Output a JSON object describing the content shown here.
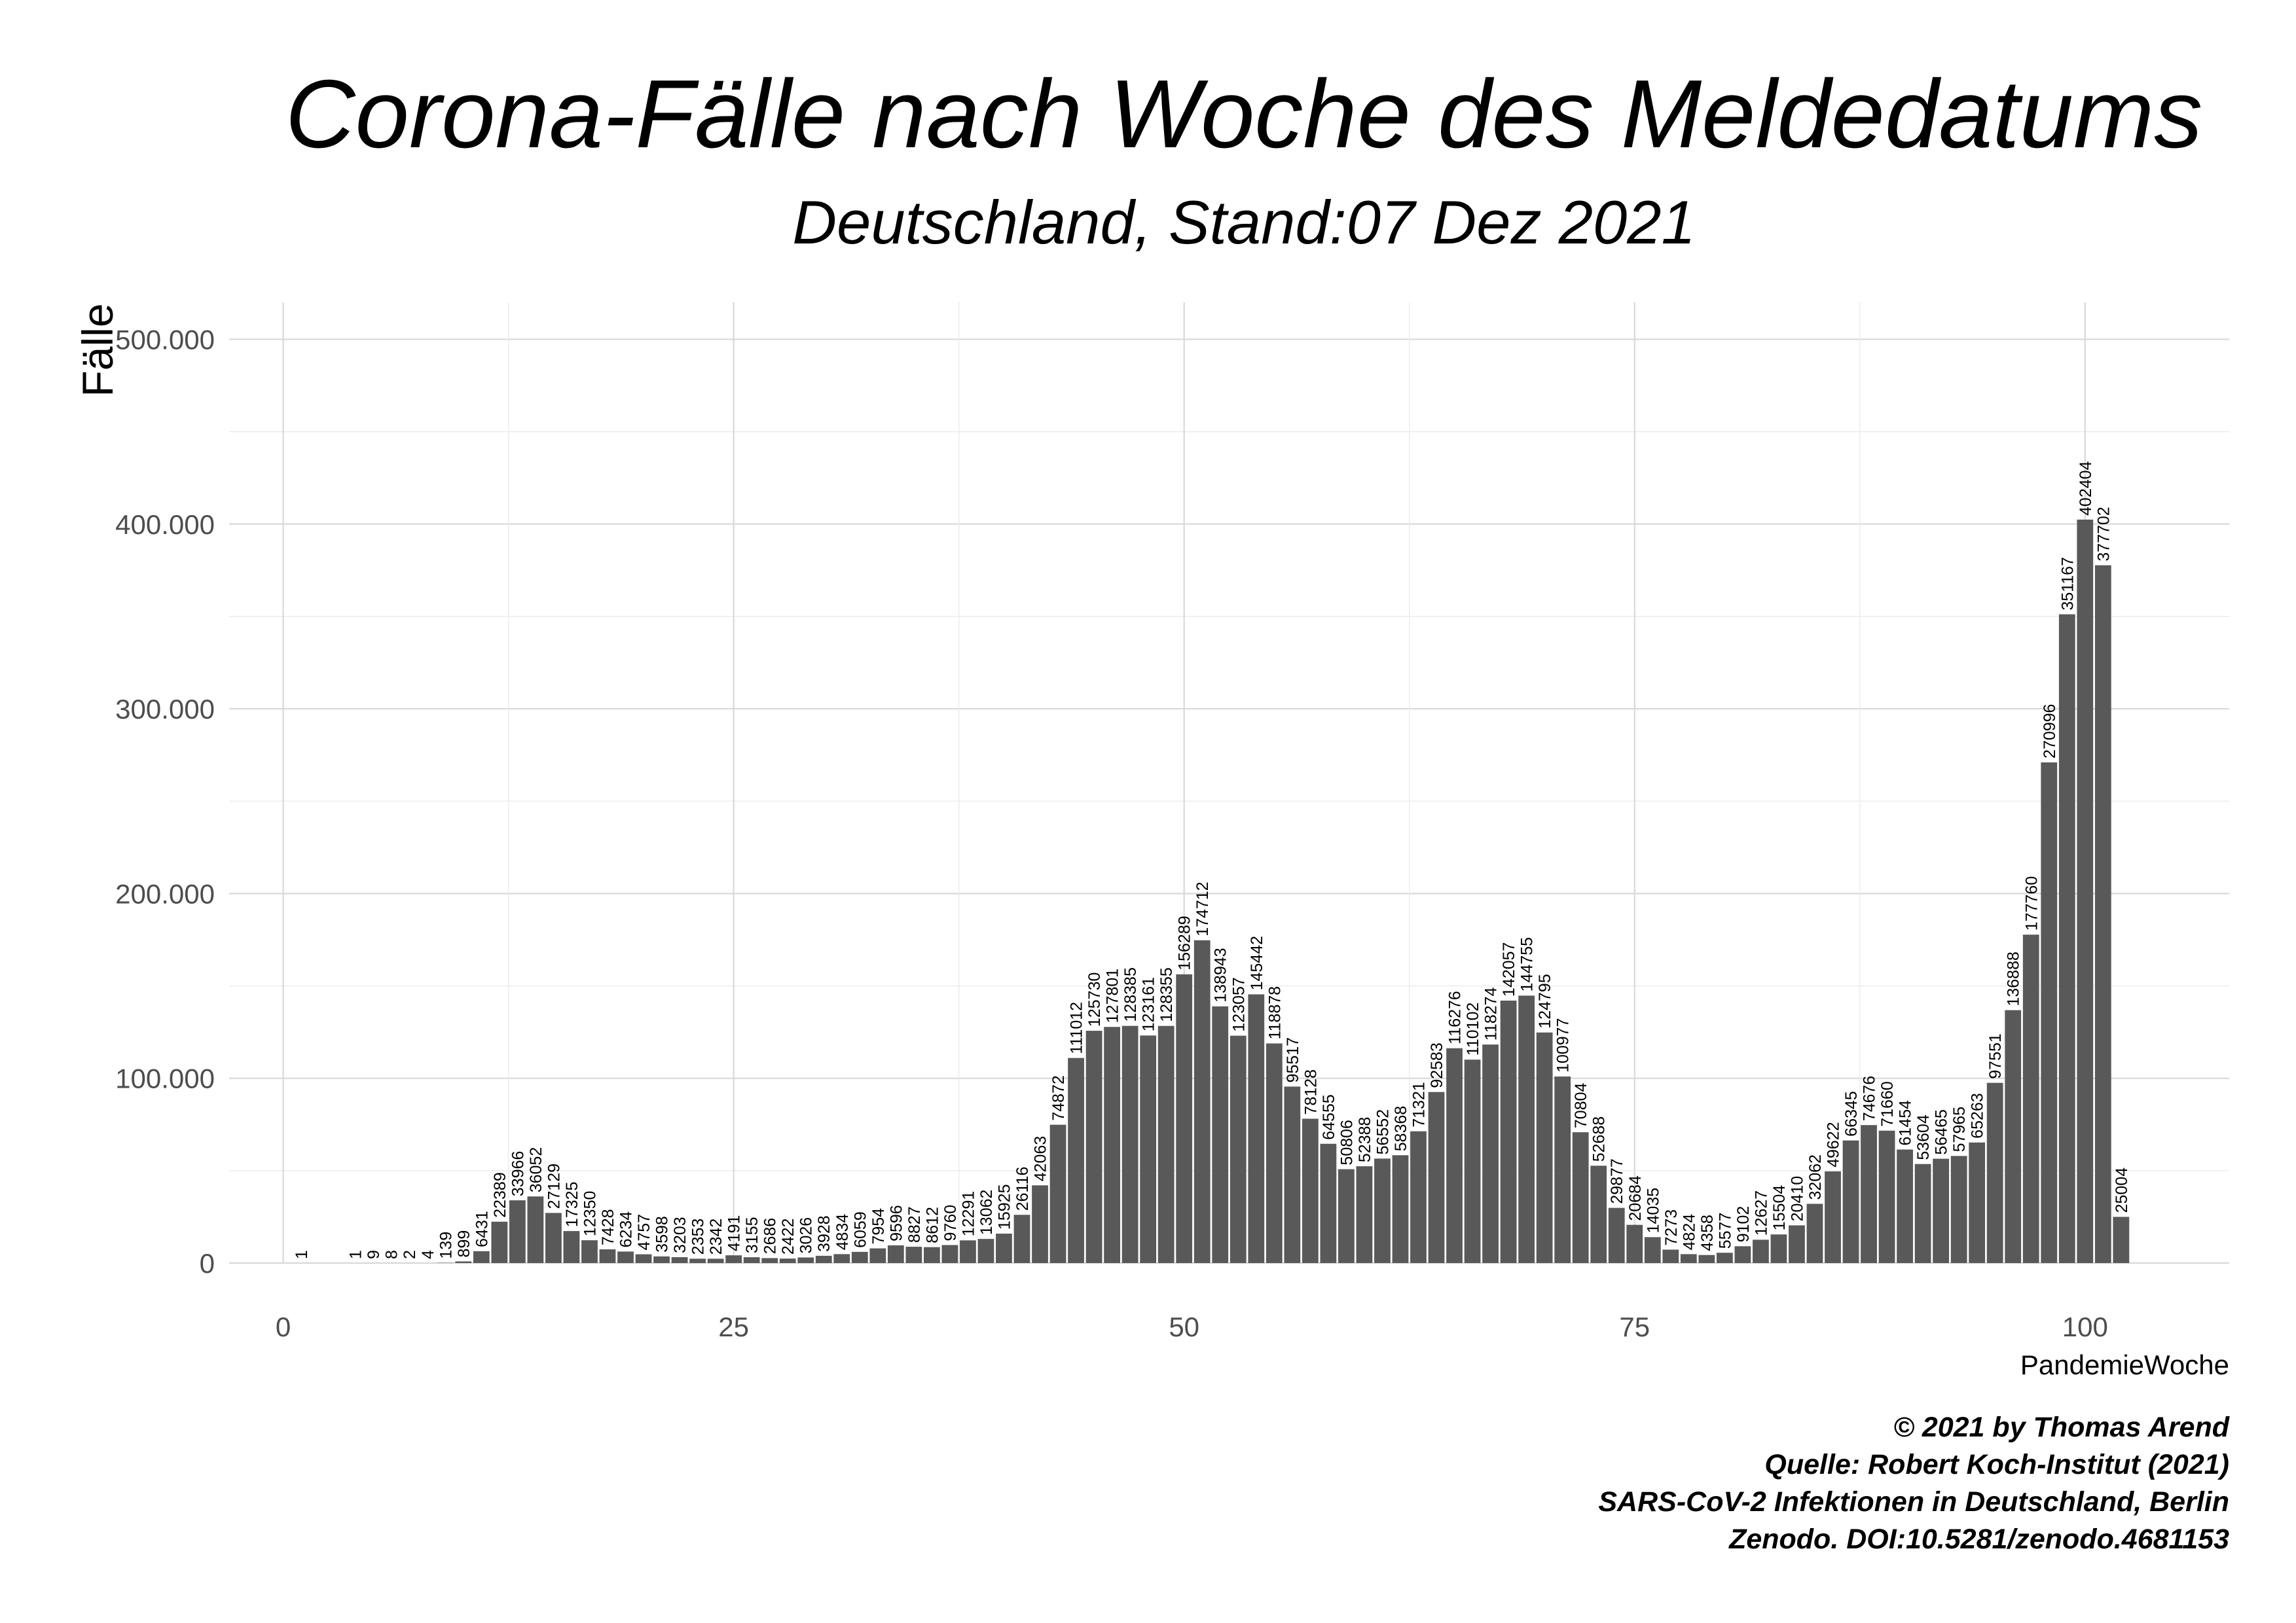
{
  "chart_data": {
    "type": "bar",
    "title": "Corona-Fälle nach Woche des Meldedatums",
    "subtitle": "Deutschland, Stand:07 Dez 2021",
    "xlabel": "PandemieWoche",
    "ylabel": "Fälle",
    "xlim": [
      -3,
      108
    ],
    "ylim": [
      0,
      520000
    ],
    "x_ticks": [
      0,
      25,
      50,
      75,
      100
    ],
    "x_tick_labels": [
      "0",
      "25",
      "50",
      "75",
      "100"
    ],
    "y_ticks": [
      0,
      100000,
      200000,
      300000,
      400000,
      500000
    ],
    "y_tick_labels": [
      "0",
      "100.000",
      "200.000",
      "300.000",
      "400.000",
      "500.000"
    ],
    "grid": true,
    "bar_color": "#595959",
    "x": [
      1,
      4,
      5,
      6,
      7,
      8,
      9,
      10,
      11,
      12,
      13,
      14,
      15,
      16,
      17,
      18,
      19,
      20,
      21,
      22,
      23,
      24,
      25,
      26,
      27,
      28,
      29,
      30,
      31,
      32,
      33,
      34,
      35,
      36,
      37,
      38,
      39,
      40,
      41,
      42,
      43,
      44,
      45,
      46,
      47,
      48,
      49,
      50,
      51,
      52,
      53,
      54,
      55,
      56,
      57,
      58,
      59,
      60,
      61,
      62,
      63,
      64,
      65,
      66,
      67,
      68,
      69,
      70,
      71,
      72,
      73,
      74,
      75,
      76,
      77,
      78,
      79,
      80,
      81,
      82,
      83,
      84,
      85,
      86,
      87,
      88,
      89,
      90,
      91,
      92,
      93,
      94,
      95,
      96,
      97,
      98,
      99,
      100,
      101,
      102
    ],
    "values": [
      1,
      1,
      9,
      8,
      2,
      4,
      139,
      899,
      6431,
      22389,
      33966,
      36052,
      27129,
      17325,
      12350,
      7428,
      6234,
      4757,
      3598,
      3203,
      2353,
      2342,
      4191,
      3155,
      2686,
      2422,
      3026,
      3928,
      4834,
      6059,
      7954,
      9596,
      8827,
      8612,
      9760,
      12291,
      13062,
      15925,
      26116,
      42063,
      74872,
      111012,
      125730,
      127801,
      128385,
      123161,
      128355,
      156289,
      174712,
      138943,
      123057,
      145442,
      118878,
      95517,
      78128,
      64555,
      50806,
      52388,
      56552,
      58368,
      71321,
      92583,
      116276,
      110102,
      118274,
      142057,
      144755,
      124795,
      100977,
      70804,
      52688,
      29877,
      20684,
      14035,
      7273,
      4824,
      4358,
      5577,
      9102,
      12627,
      15504,
      20410,
      32062,
      49622,
      66345,
      74676,
      71660,
      61454,
      53604,
      56465,
      57965,
      65263,
      97551,
      136888,
      177760,
      270996,
      351167,
      402404,
      377702,
      25004
    ],
    "data_labels": [
      "1",
      "1",
      "9",
      "8",
      "2",
      "4",
      "139",
      "899",
      "6431",
      "22389",
      "33966",
      "36052",
      "27129",
      "17325",
      "12350",
      "7428",
      "6234",
      "4757",
      "3598",
      "3203",
      "2353",
      "2342",
      "4191",
      "3155",
      "2686",
      "2422",
      "3026",
      "3928",
      "4834",
      "6059",
      "7954",
      "9596",
      "8827",
      "8612",
      "9760",
      "12291",
      "13062",
      "15925",
      "26116",
      "42063",
      "74872",
      "111012",
      "125730",
      "127801",
      "128385",
      "123161",
      "128355",
      "156289",
      "174712",
      "138943",
      "123057",
      "145442",
      "118878",
      "95517",
      "78128",
      "64555",
      "50806",
      "52388",
      "56552",
      "58368",
      "71321",
      "92583",
      "116276",
      "110102",
      "118274",
      "142057",
      "144755",
      "124795",
      "100977",
      "70804",
      "52688",
      "29877",
      "20684",
      "14035",
      "7273",
      "4824",
      "4358",
      "5577",
      "9102",
      "12627",
      "15504",
      "20410",
      "32062",
      "49622",
      "66345",
      "74676",
      "71660",
      "61454",
      "53604",
      "56465",
      "57965",
      "65263",
      "97551",
      "136888",
      "177760",
      "270996",
      "351167",
      "402404",
      "377702",
      "25004"
    ]
  },
  "caption": {
    "lines": [
      "© 2021 by Thomas Arend",
      "Quelle: Robert Koch-Institut (2021)",
      "SARS-CoV-2 Infektionen in Deutschland, Berlin",
      "Zenodo. DOI:10.5281/zenodo.4681153"
    ]
  }
}
